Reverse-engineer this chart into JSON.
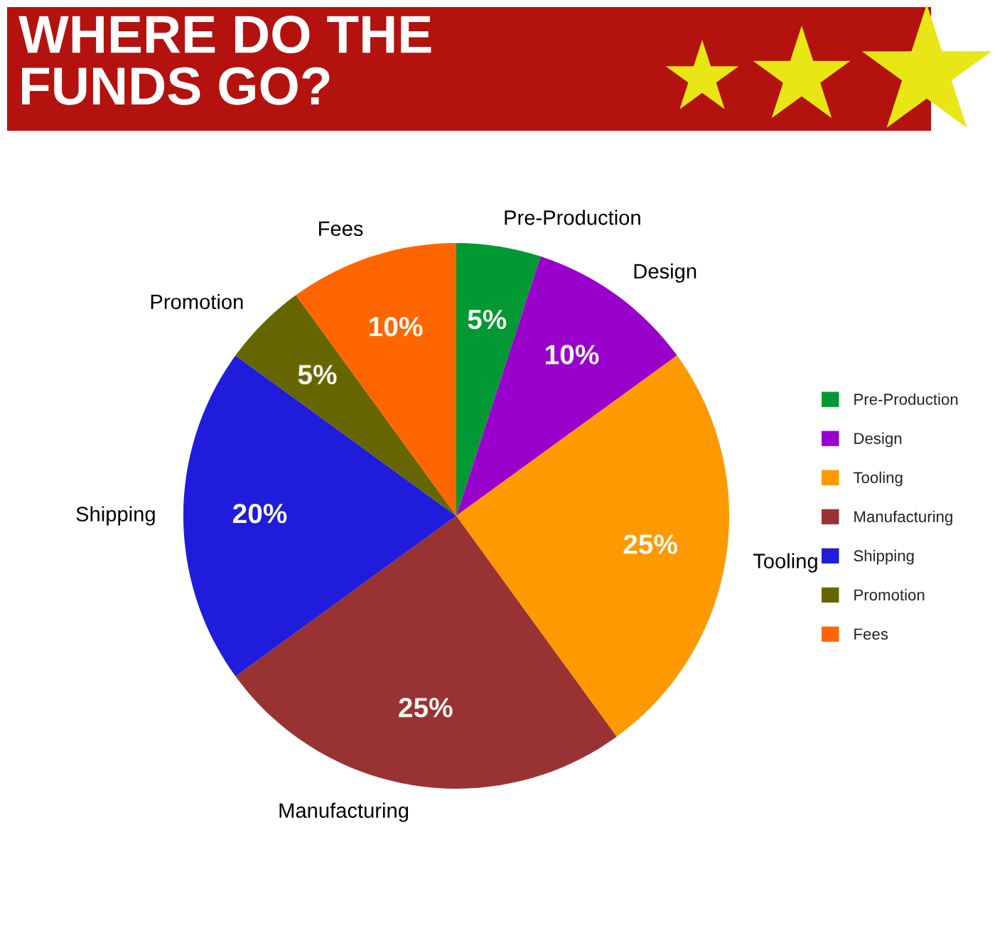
{
  "chart_data": {
    "type": "pie",
    "title": "WHERE DO THE\nFUNDS GO?",
    "categories": [
      "Pre-Production",
      "Design",
      "Tooling",
      "Manufacturing",
      "Shipping",
      "Promotion",
      "Fees"
    ],
    "values": [
      5,
      10,
      25,
      25,
      20,
      5,
      10
    ],
    "colors": [
      "#009933",
      "#9900cc",
      "#ff9900",
      "#993333",
      "#1f1cdb",
      "#666600",
      "#ff6600"
    ],
    "value_labels": [
      "5%",
      "10%",
      "25%",
      "25%",
      "20%",
      "5%",
      "10%"
    ],
    "legend": "right"
  }
}
